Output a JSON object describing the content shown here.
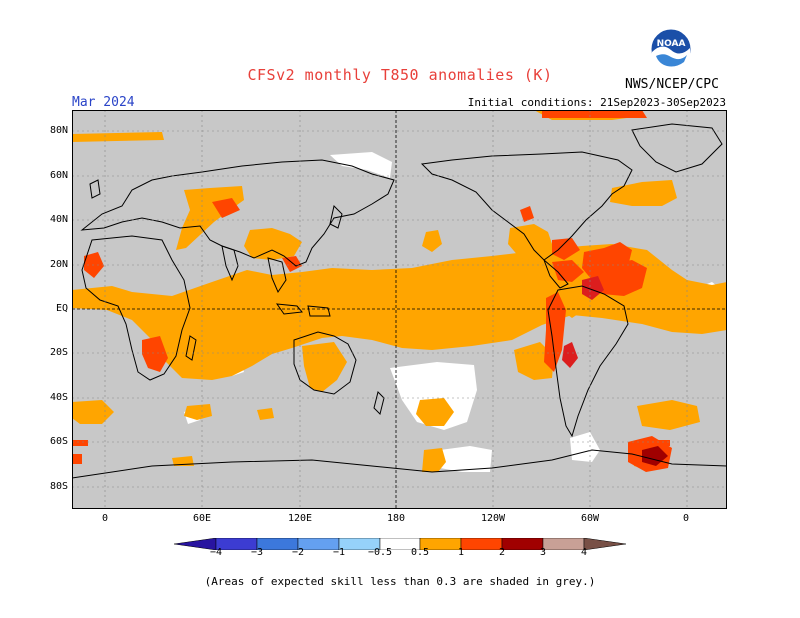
{
  "header": {
    "title": "CFSv2 monthly T850 anomalies (K)",
    "agency": "NWS/NCEP/CPC",
    "logo_text": "NOAA",
    "period": "Mar 2024",
    "initial_conditions": "Initial conditions: 21Sep2023-30Sep2023"
  },
  "map": {
    "lat_labels": [
      "80N",
      "60N",
      "40N",
      "20N",
      "EQ",
      "20S",
      "40S",
      "60S",
      "80S"
    ],
    "lon_labels": [
      "0",
      "60E",
      "120E",
      "180",
      "120W",
      "60W",
      "0"
    ],
    "colors": {
      "grey": "#c8c8c8",
      "white": "#ffffff",
      "c05_1": "#ffa500",
      "c1_2": "#ff4500",
      "c2_3": "#dc1e1e",
      "c3_4": "#a00000",
      "c4p": "#780000"
    }
  },
  "colorbar": {
    "labels": [
      "−4",
      "−3",
      "−2",
      "−1",
      "−0.5",
      "0.5",
      "1",
      "2",
      "3",
      "4"
    ],
    "colors": [
      "#2814a0",
      "#3c3cd2",
      "#3c78dc",
      "#64a0f0",
      "#96d2fa",
      "#ffffff",
      "#ffa500",
      "#ff4500",
      "#a00000",
      "#c8a096",
      "#785046"
    ]
  },
  "footnote": "(Areas of expected skill less than 0.3 are shaded in grey.)"
}
